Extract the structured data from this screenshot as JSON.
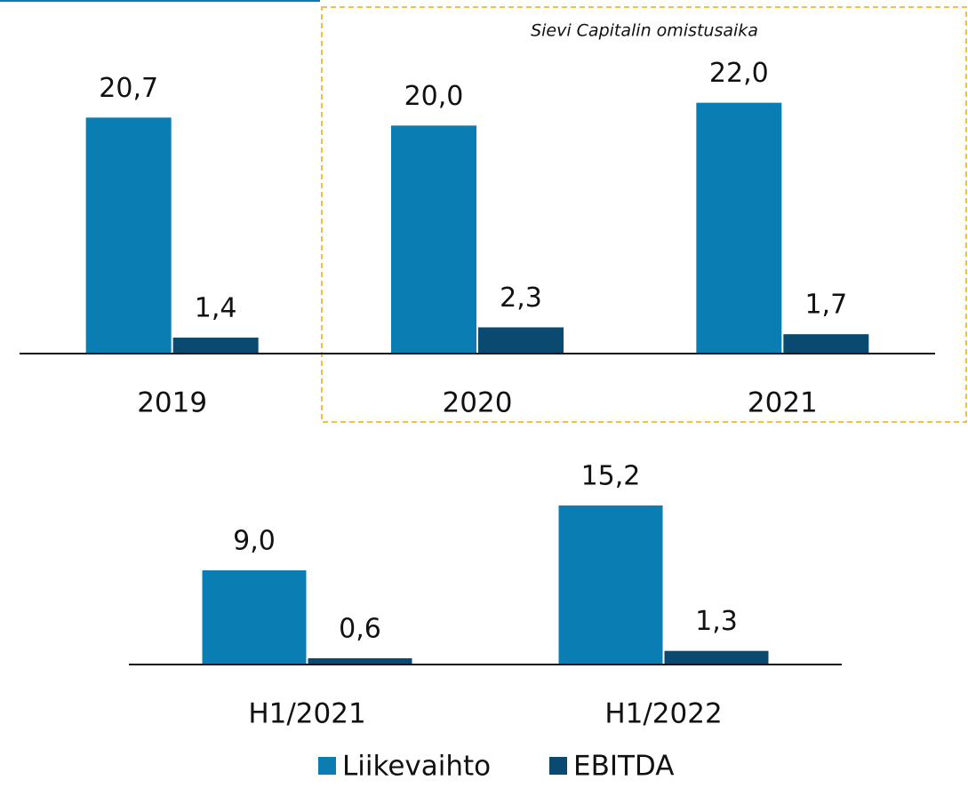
{
  "chart_data": [
    {
      "type": "bar",
      "annotation": "Sievi Capitalin omistusaika",
      "categories": [
        "2019",
        "2020",
        "2021"
      ],
      "series": [
        {
          "name": "Liikevaihto",
          "color": "#0a7db2",
          "values": [
            20.7,
            20.0,
            22.0
          ],
          "value_labels": [
            "20,7",
            "20,0",
            "22,0"
          ]
        },
        {
          "name": "EBITDA",
          "color": "#0b4a70",
          "values": [
            1.4,
            2.3,
            1.7
          ],
          "value_labels": [
            "1,4",
            "2,3",
            "1,7"
          ]
        }
      ],
      "ylim": [
        0,
        24
      ]
    },
    {
      "type": "bar",
      "categories": [
        "H1/2021",
        "H1/2022"
      ],
      "series": [
        {
          "color": "#0a7db2",
          "values": [
            9.0,
            15.2
          ],
          "value_labels": [
            "9,0",
            "15,2"
          ]
        },
        {
          "color": "#0b4a70",
          "values": [
            0.6,
            1.3
          ],
          "value_labels": [
            "0,6",
            "1,3"
          ]
        }
      ],
      "ylim": [
        0,
        18
      ]
    }
  ]
}
